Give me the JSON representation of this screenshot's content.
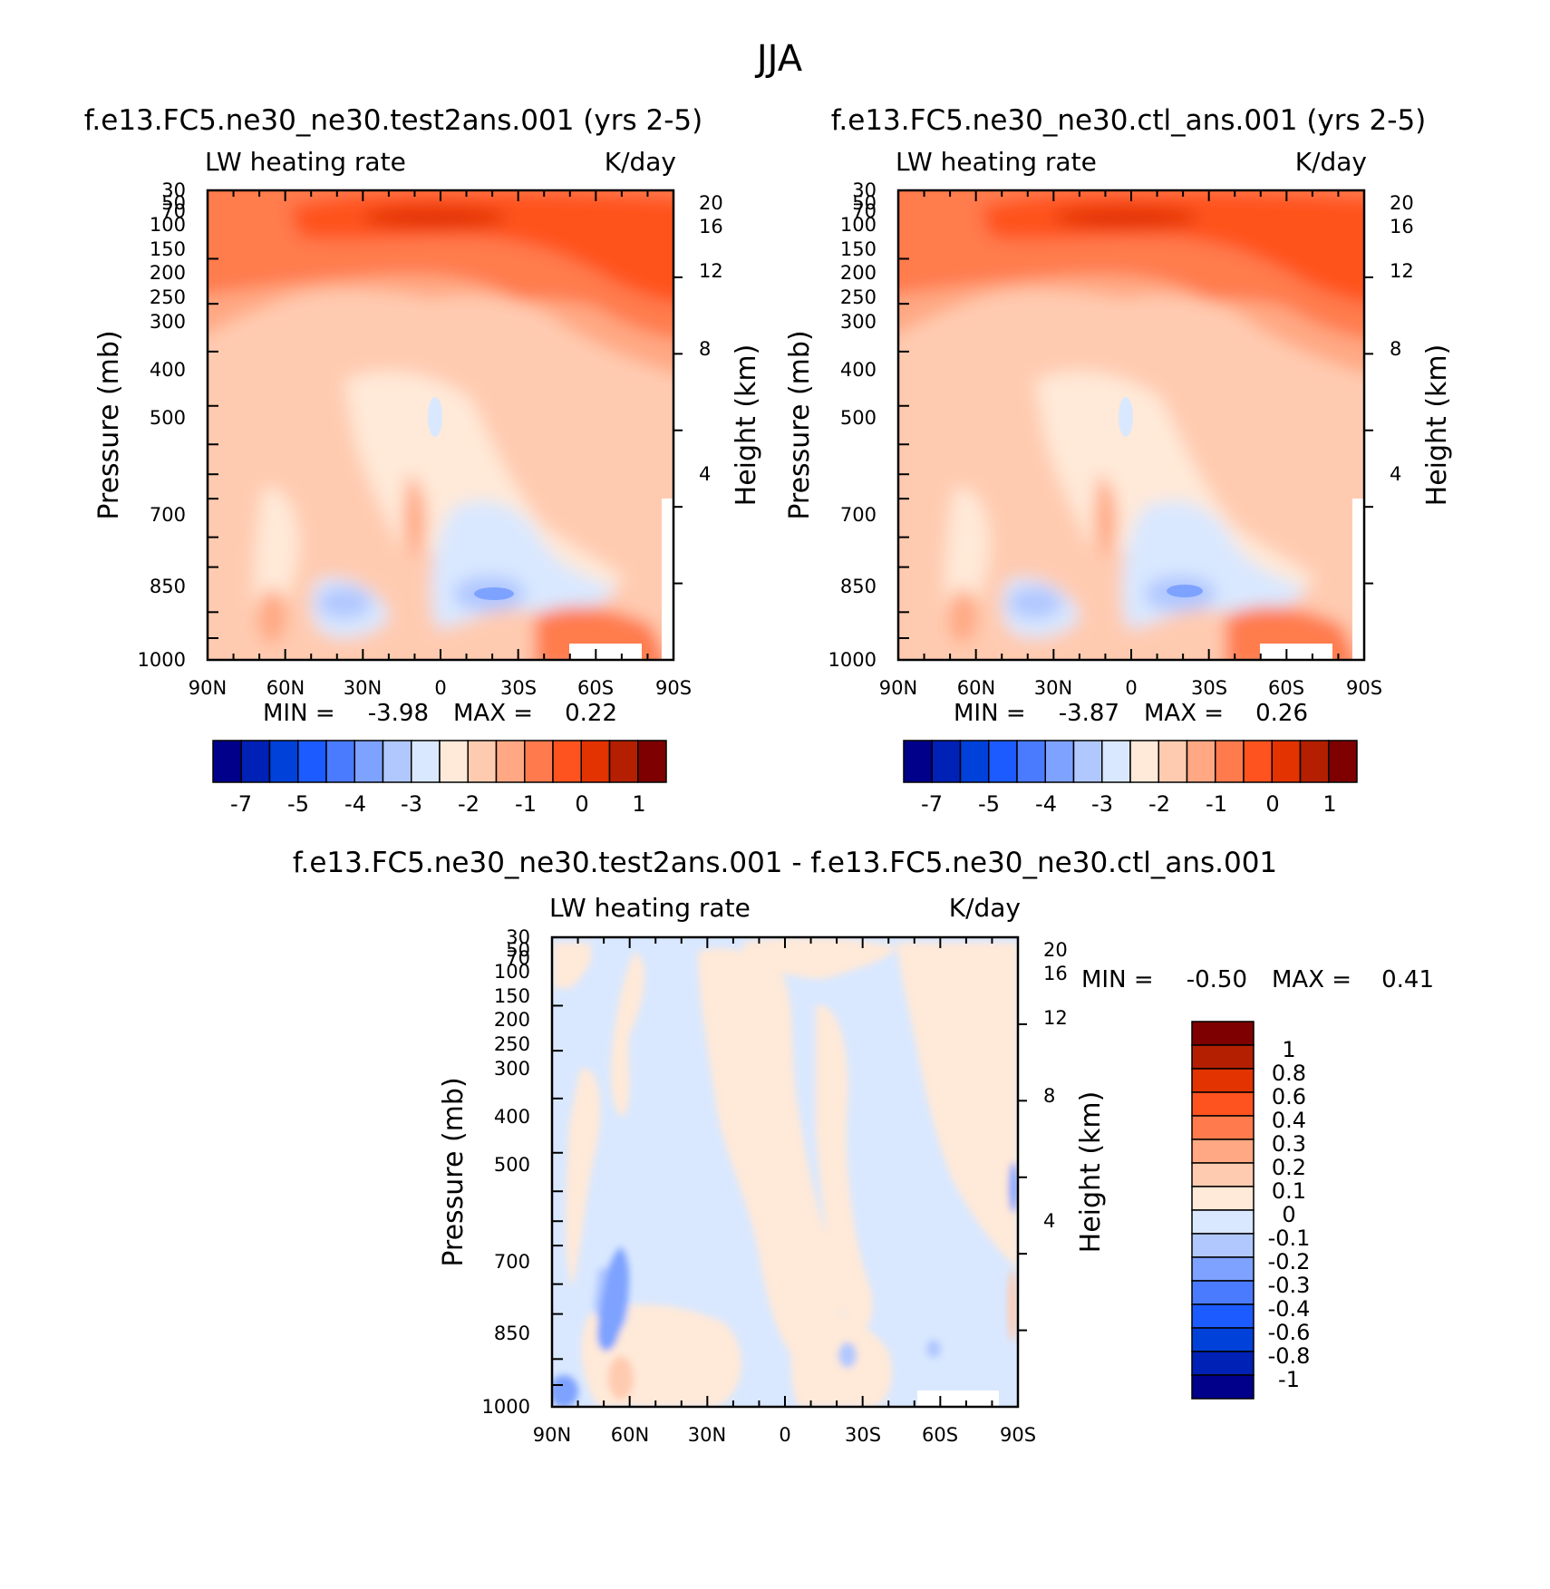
{
  "figure_title": "JJA",
  "colors": {
    "main_scale": [
      "#00008b",
      "#0021b5",
      "#0041d9",
      "#1c5bff",
      "#4a7bff",
      "#7da2ff",
      "#b1c8ff",
      "#d9e8ff",
      "#ffe9d8",
      "#ffcbb0",
      "#ffa883",
      "#ff7b4d",
      "#ff531f",
      "#e23300",
      "#b31f00",
      "#7e0000"
    ],
    "diff_scale": [
      "#00008b",
      "#0021b5",
      "#0041d9",
      "#1c5bff",
      "#4a7bff",
      "#7da2ff",
      "#b1c8ff",
      "#d9e8ff",
      "#ffe9d8",
      "#ffcbb0",
      "#ffa883",
      "#ff7b4d",
      "#ff531f",
      "#e23300",
      "#b31f00",
      "#7e0000"
    ]
  },
  "chart_data": [
    {
      "type": "heatmap",
      "title": "f.e13.FC5.ne30_ne30.test2ans.001 (yrs 2-5)",
      "left_label": "LW heating rate",
      "right_label": "K/day",
      "ylabel": "Pressure (mb)",
      "ylabel_right": "Height (km)",
      "y_scale": "log",
      "ylim": [
        1000,
        30
      ],
      "x_ticks": [
        "90N",
        "60N",
        "30N",
        "0",
        "30S",
        "60S",
        "90S"
      ],
      "y_ticks": [
        "30",
        "50",
        "70",
        "100",
        "150",
        "200",
        "250",
        "300",
        "400",
        "500",
        "700",
        "850",
        "1000"
      ],
      "height_ticks": [
        "20",
        "16",
        "12",
        "8",
        "4"
      ],
      "min_label": "MIN =",
      "min_value": "-3.98",
      "max_label": "MAX =",
      "max_value": "0.22",
      "colorbar_labels": [
        "-7",
        "-5",
        "-4",
        "-3",
        "-2",
        "-1",
        "0",
        "1"
      ]
    },
    {
      "type": "heatmap",
      "title": "f.e13.FC5.ne30_ne30.ctl_ans.001 (yrs 2-5)",
      "left_label": "LW heating rate",
      "right_label": "K/day",
      "ylabel": "Pressure (mb)",
      "ylabel_right": "Height (km)",
      "y_scale": "log",
      "ylim": [
        1000,
        30
      ],
      "x_ticks": [
        "90N",
        "60N",
        "30N",
        "0",
        "30S",
        "60S",
        "90S"
      ],
      "y_ticks": [
        "30",
        "50",
        "70",
        "100",
        "150",
        "200",
        "250",
        "300",
        "400",
        "500",
        "700",
        "850",
        "1000"
      ],
      "height_ticks": [
        "20",
        "16",
        "12",
        "8",
        "4"
      ],
      "min_label": "MIN =",
      "min_value": "-3.87",
      "max_label": "MAX =",
      "max_value": "0.26",
      "colorbar_labels": [
        "-7",
        "-5",
        "-4",
        "-3",
        "-2",
        "-1",
        "0",
        "1"
      ]
    },
    {
      "type": "heatmap",
      "title": "f.e13.FC5.ne30_ne30.test2ans.001 - f.e13.FC5.ne30_ne30.ctl_ans.001",
      "left_label": "LW heating rate",
      "right_label": "K/day",
      "ylabel": "Pressure (mb)",
      "ylabel_right": "Height (km)",
      "y_scale": "log",
      "ylim": [
        1000,
        30
      ],
      "x_ticks": [
        "90N",
        "60N",
        "30N",
        "0",
        "30S",
        "60S",
        "90S"
      ],
      "y_ticks": [
        "30",
        "50",
        "70",
        "100",
        "150",
        "200",
        "250",
        "300",
        "400",
        "500",
        "700",
        "850",
        "1000"
      ],
      "height_ticks": [
        "20",
        "16",
        "12",
        "8",
        "4"
      ],
      "min_label": "MIN =",
      "min_value": "-0.50",
      "max_label": "MAX =",
      "max_value": "0.41",
      "colorbar_labels": [
        "1",
        "0.8",
        "0.6",
        "0.4",
        "0.3",
        "0.2",
        "0.1",
        "0",
        "-0.1",
        "-0.2",
        "-0.3",
        "-0.4",
        "-0.6",
        "-0.8",
        "-1"
      ]
    }
  ]
}
